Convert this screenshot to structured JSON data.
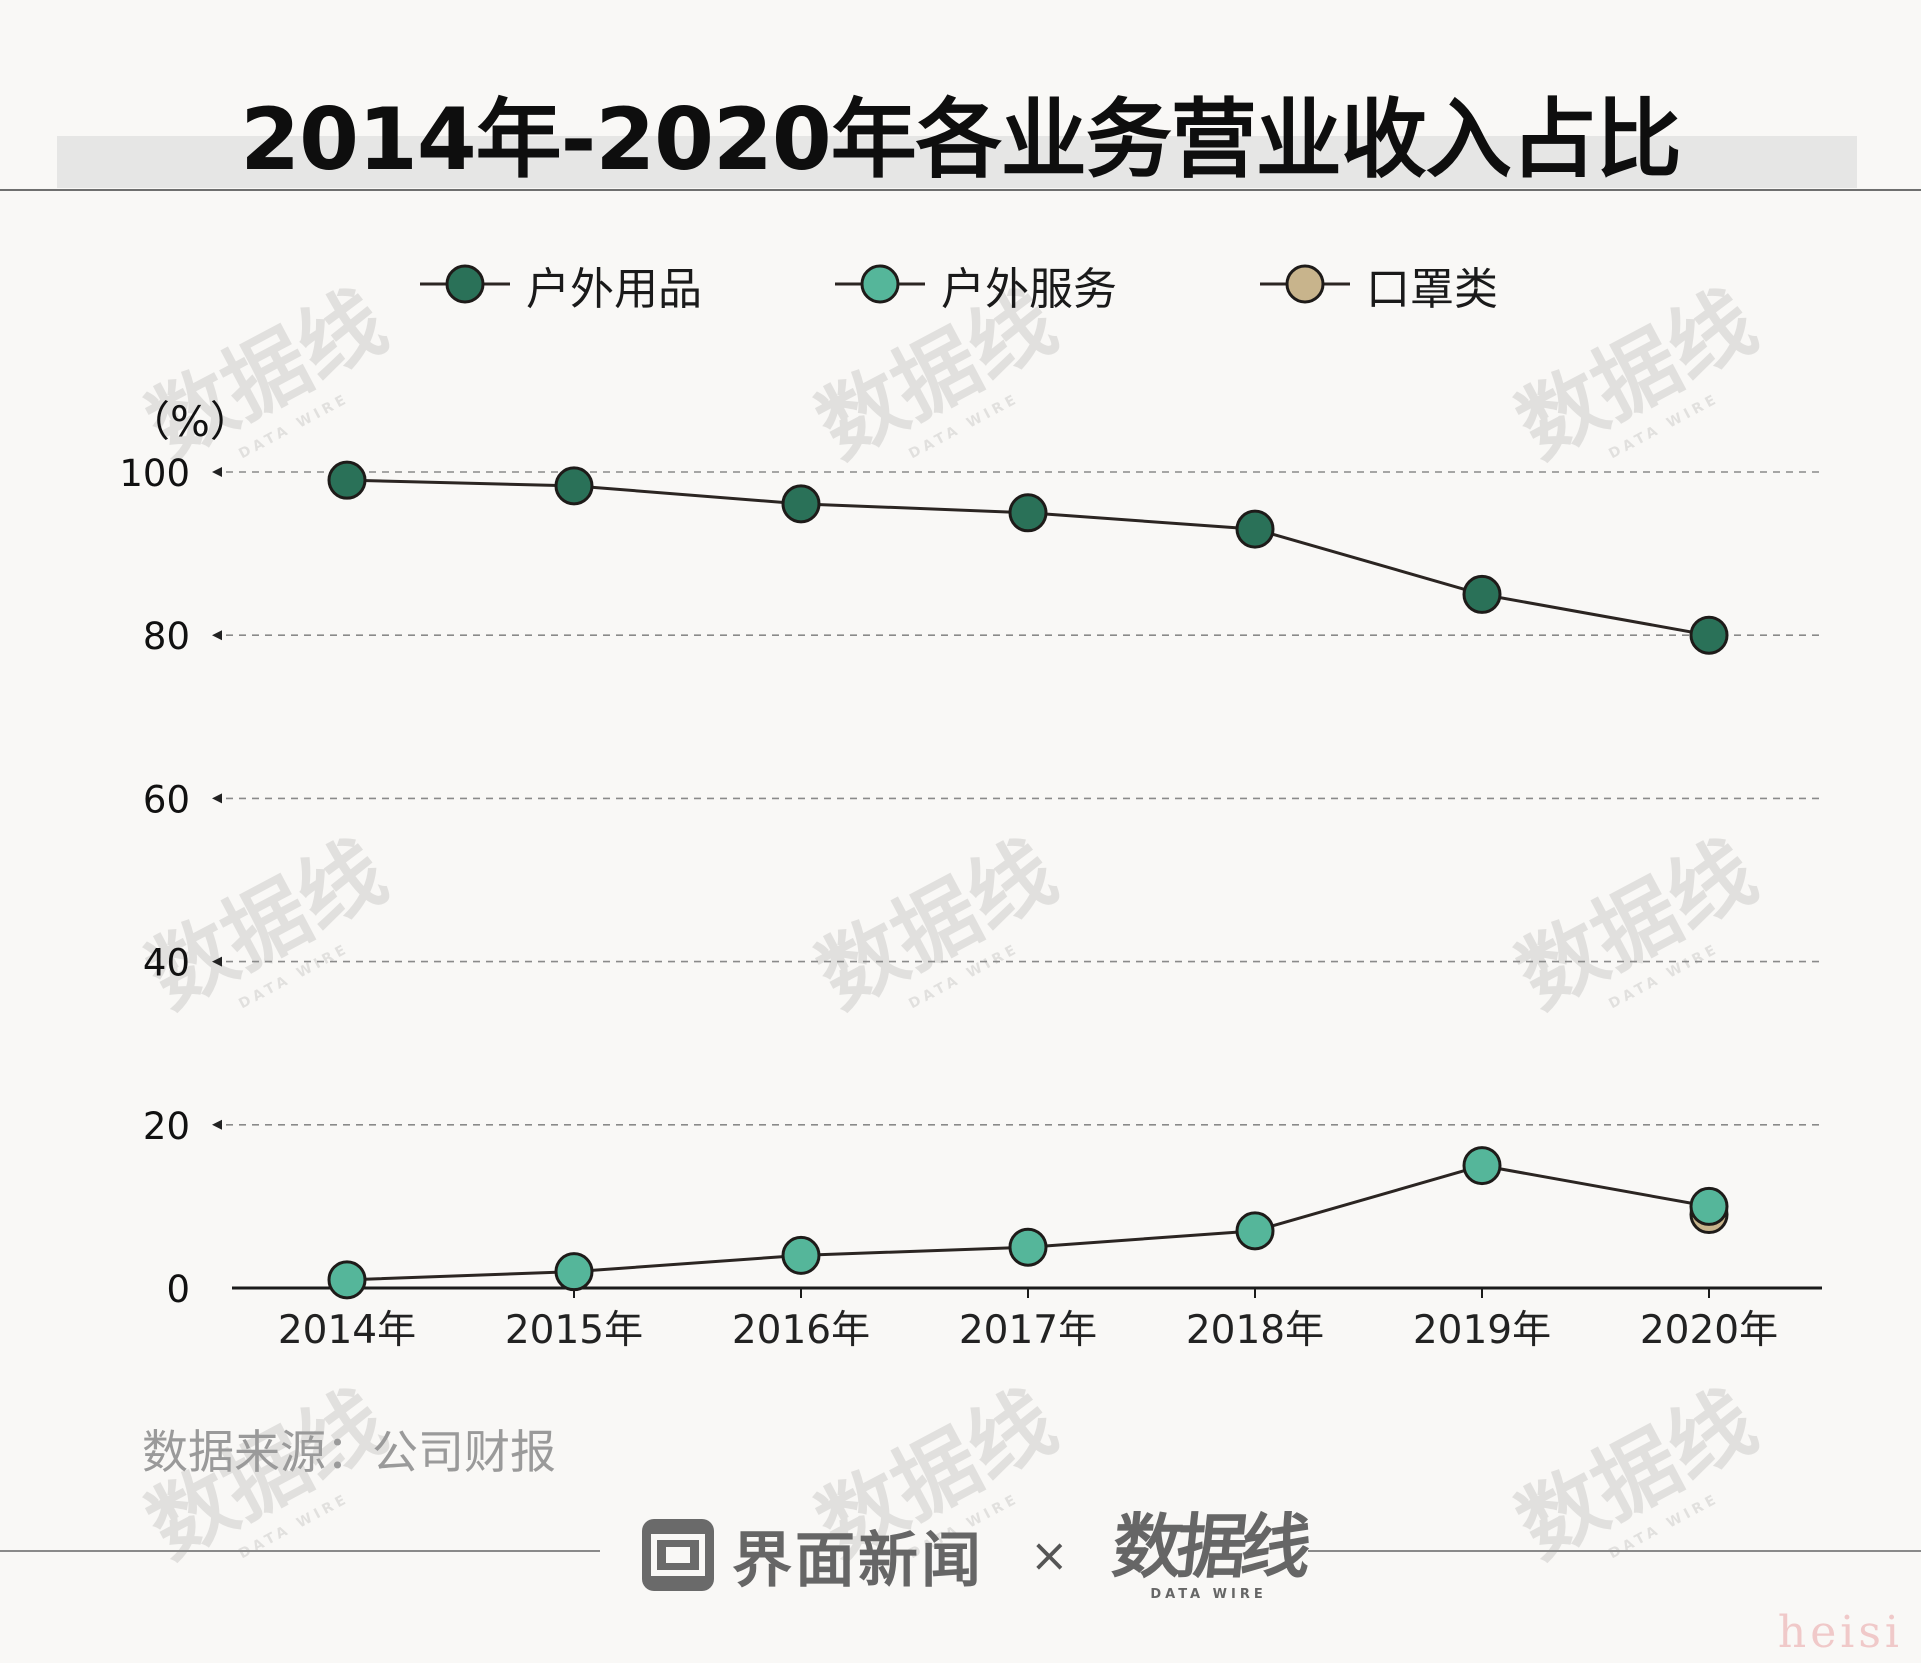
{
  "title": "2014年-2020年各业务营业收入占比",
  "unit_label": "（%）",
  "source": "数据来源：公司财报",
  "footer": {
    "brand": "界面新闻",
    "cross": "×",
    "partner_logo": "数据线",
    "partner_sub": "DATA WIRE"
  },
  "signature": "heisi",
  "colors": {
    "background": "#f9f8f6",
    "line": "#2b2522",
    "grid": "#8a8a8a",
    "outdoor_products": "#2a7158",
    "outdoor_services": "#55b69a",
    "masks": "#c8b48c"
  },
  "chart_data": {
    "type": "line",
    "title": "2014年-2020年各业务营业收入占比",
    "ylabel": "（%）",
    "xlabel": "",
    "categories": [
      "2014年",
      "2015年",
      "2016年",
      "2017年",
      "2018年",
      "2019年",
      "2020年"
    ],
    "ylim": [
      0,
      100
    ],
    "yticks": [
      0,
      20,
      40,
      60,
      80,
      100
    ],
    "grid": "horizontal dashed",
    "legend_position": "top-center",
    "series": [
      {
        "name": "户外用品",
        "color": "#2a7158",
        "values": [
          99,
          98.3,
          96.1,
          95,
          93,
          85,
          80
        ]
      },
      {
        "name": "户外服务",
        "color": "#55b69a",
        "values": [
          1,
          2,
          4,
          5,
          7,
          15,
          10
        ]
      },
      {
        "name": "口罩类",
        "color": "#c8b48c",
        "values": [
          null,
          null,
          null,
          null,
          null,
          null,
          9
        ]
      }
    ]
  }
}
